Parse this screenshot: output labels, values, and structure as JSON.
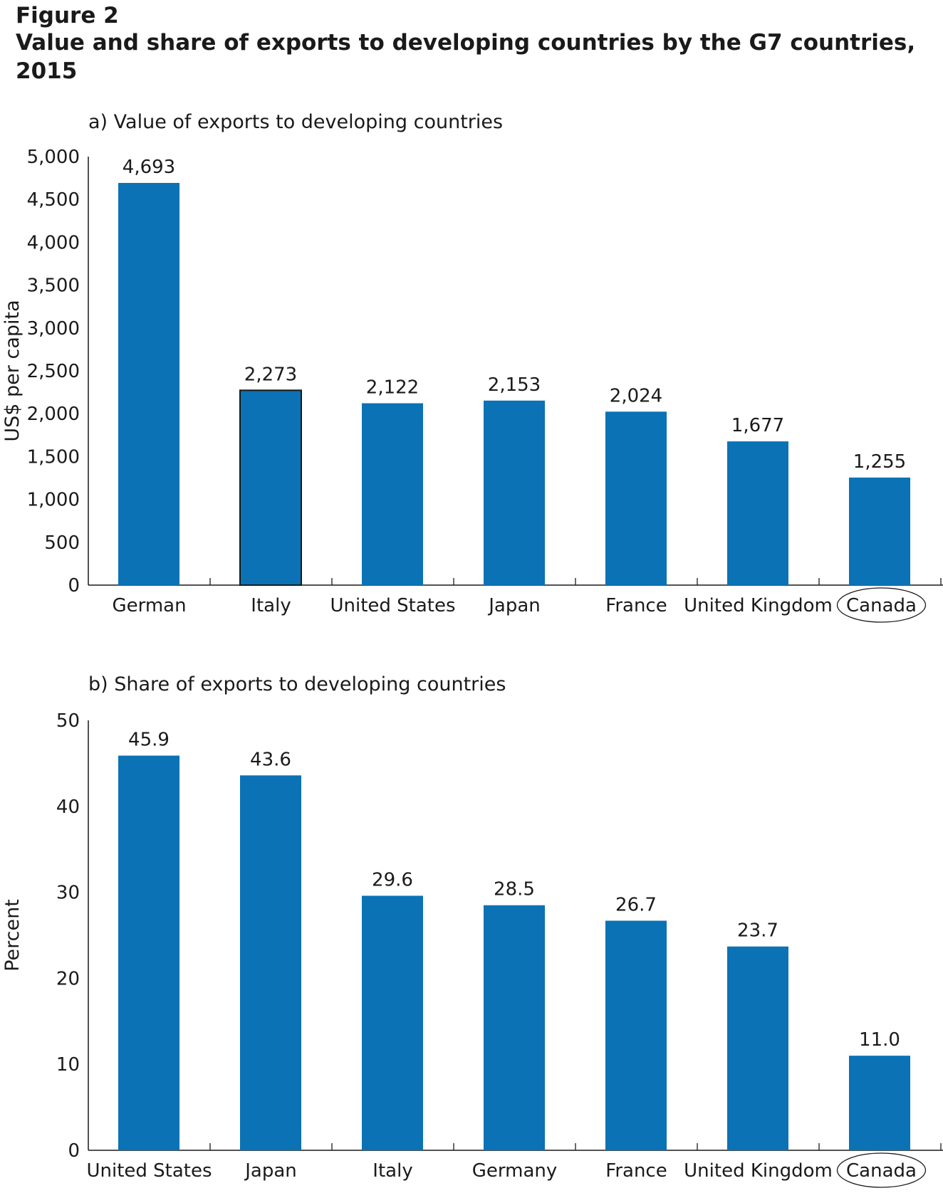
{
  "figure": {
    "label": "Figure 2",
    "title": "Value and share of exports to developing countries by the G7 countries, 2015"
  },
  "chart_data": [
    {
      "type": "bar",
      "title": "a) Value of exports to developing countries",
      "ylabel": "US$ per capita",
      "xlabel": "",
      "ylim": [
        0,
        5000
      ],
      "yticks": [
        0,
        500,
        1000,
        1500,
        2000,
        2500,
        3000,
        3500,
        4000,
        4500,
        5000
      ],
      "ytick_labels": [
        "0",
        "500",
        "1,000",
        "1,500",
        "2,000",
        "2,500",
        "3,000",
        "3,500",
        "4,000",
        "4,500",
        "5,000"
      ],
      "categories": [
        "German",
        "Italy",
        "United States",
        "Japan",
        "France",
        "United Kingdom",
        "Canada"
      ],
      "values": [
        4693,
        2273,
        2122,
        2153,
        2024,
        1677,
        1255
      ],
      "value_labels": [
        "4,693",
        "2,273",
        "2,122",
        "2,153",
        "2,024",
        "1,677",
        "1,255"
      ],
      "highlighted_category": "Canada",
      "outlined_category": "Italy",
      "grid": false,
      "bar_color": "#0b72b5"
    },
    {
      "type": "bar",
      "title": "b) Share of exports to developing countries",
      "ylabel": "Percent",
      "xlabel": "",
      "ylim": [
        0,
        50
      ],
      "yticks": [
        0,
        10,
        20,
        30,
        40,
        50
      ],
      "ytick_labels": [
        "0",
        "10",
        "20",
        "30",
        "40",
        "50"
      ],
      "categories": [
        "United States",
        "Japan",
        "Italy",
        "Germany",
        "France",
        "United Kingdom",
        "Canada"
      ],
      "values": [
        45.9,
        43.6,
        29.6,
        28.5,
        26.7,
        23.7,
        11.0
      ],
      "value_labels": [
        "45.9",
        "43.6",
        "29.6",
        "28.5",
        "26.7",
        "23.7",
        "11.0"
      ],
      "highlighted_category": "Canada",
      "grid": false,
      "bar_color": "#0b72b5"
    }
  ]
}
